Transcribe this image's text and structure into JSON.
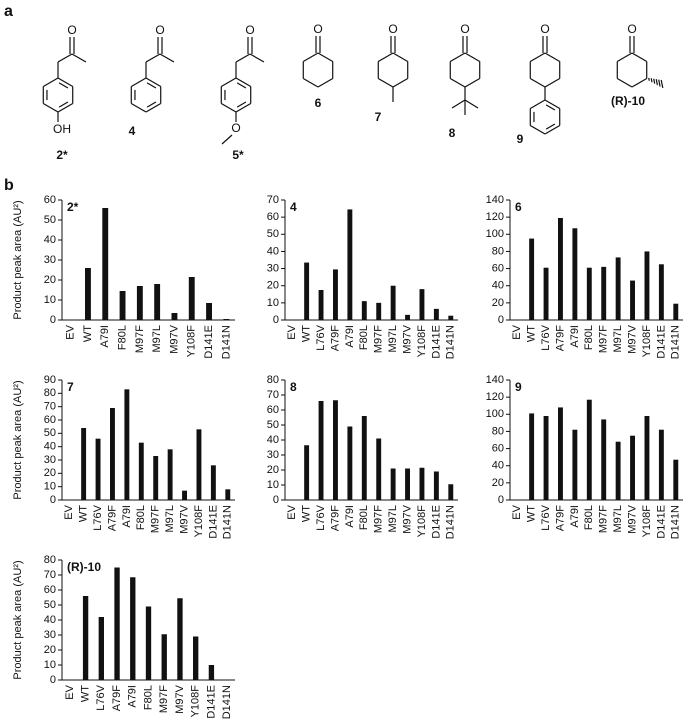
{
  "figure": {
    "panel_a": "a",
    "panel_b": "b",
    "compounds": [
      {
        "label": "2*",
        "atoms": [
          "O",
          "OH"
        ]
      },
      {
        "label": "4",
        "atoms": [
          "O"
        ]
      },
      {
        "label": "5*",
        "atoms": [
          "O",
          "O"
        ]
      },
      {
        "label": "6",
        "atoms": [
          "O"
        ]
      },
      {
        "label": "7",
        "atoms": [
          "O"
        ]
      },
      {
        "label": "8",
        "atoms": [
          "O"
        ]
      },
      {
        "label": "9",
        "atoms": [
          "O"
        ]
      },
      {
        "label": "(R)-10",
        "atoms": [
          "O"
        ]
      }
    ]
  },
  "chart_data": [
    {
      "type": "bar",
      "title": "2*",
      "ylabel": "Product peak area (AU²)",
      "color": "#111111",
      "categories": [
        "EV",
        "WT",
        "A79I",
        "F80L",
        "M97F",
        "M97L",
        "M97V",
        "Y108F",
        "D141E",
        "D141N"
      ],
      "values": [
        0,
        26,
        56,
        14.5,
        17,
        18,
        3.5,
        21.5,
        8.5,
        0.5
      ],
      "ylim": [
        0,
        60
      ],
      "yticks": [
        0,
        10,
        20,
        30,
        40,
        50,
        60
      ]
    },
    {
      "type": "bar",
      "title": "4",
      "color": "#111111",
      "categories": [
        "EV",
        "WT",
        "L76V",
        "A79F",
        "A79I",
        "F80L",
        "M97F",
        "M97L",
        "M97V",
        "Y108F",
        "D141E",
        "D141N"
      ],
      "values": [
        0,
        33.5,
        17.5,
        29.5,
        64.5,
        11,
        10,
        20,
        3,
        18,
        6.5,
        2.5
      ],
      "ylim": [
        0,
        70
      ],
      "yticks": [
        0,
        10,
        20,
        30,
        40,
        50,
        60,
        70
      ]
    },
    {
      "type": "bar",
      "title": "6",
      "color": "#111111",
      "categories": [
        "EV",
        "WT",
        "L76V",
        "A79F",
        "A79I",
        "F80L",
        "M97F",
        "M97L",
        "M97V",
        "Y108F",
        "D141E",
        "D141N"
      ],
      "values": [
        0,
        95,
        61,
        119,
        107,
        61,
        62,
        73,
        46,
        80,
        65,
        19
      ],
      "ylim": [
        0,
        140
      ],
      "yticks": [
        0,
        20,
        40,
        60,
        80,
        100,
        120,
        140
      ]
    },
    {
      "type": "bar",
      "title": "7",
      "ylabel": "Product peak area (AU²)",
      "color": "#111111",
      "categories": [
        "EV",
        "WT",
        "L76V",
        "A79F",
        "A79I",
        "F80L",
        "M97F",
        "M97L",
        "M97V",
        "Y108F",
        "D141E",
        "D141N"
      ],
      "values": [
        0,
        54,
        46,
        69,
        83,
        43,
        33,
        38,
        7,
        53,
        26,
        8
      ],
      "ylim": [
        0,
        90
      ],
      "yticks": [
        0,
        10,
        20,
        30,
        40,
        50,
        60,
        70,
        80,
        90
      ]
    },
    {
      "type": "bar",
      "title": "8",
      "color": "#111111",
      "categories": [
        "EV",
        "WT",
        "L76V",
        "A79F",
        "A79I",
        "F80L",
        "M97F",
        "M97L",
        "M97V",
        "Y108F",
        "D141E",
        "D141N"
      ],
      "values": [
        0,
        36.5,
        66,
        66.5,
        49,
        56,
        41,
        21,
        21,
        21.5,
        19,
        10.5
      ],
      "ylim": [
        0,
        80
      ],
      "yticks": [
        0,
        10,
        20,
        30,
        40,
        50,
        60,
        70,
        80
      ]
    },
    {
      "type": "bar",
      "title": "9",
      "color": "#111111",
      "categories": [
        "EV",
        "WT",
        "L76V",
        "A79F",
        "A79I",
        "F80L",
        "M97F",
        "M97L",
        "M97V",
        "Y108F",
        "D141E",
        "D141N"
      ],
      "values": [
        0,
        101,
        98,
        108,
        82,
        117,
        94,
        68,
        75,
        98,
        82,
        47
      ],
      "ylim": [
        0,
        140
      ],
      "yticks": [
        0,
        20,
        40,
        60,
        80,
        100,
        120,
        140
      ]
    },
    {
      "type": "bar",
      "title": "(R)-10",
      "ylabel": "Product peak area (AU²)",
      "color": "#111111",
      "categories": [
        "EV",
        "WT",
        "L76V",
        "A79F",
        "A79I",
        "F80L",
        "M97F",
        "M97V",
        "Y108F",
        "D141E",
        "D141N"
      ],
      "values": [
        0,
        56,
        42,
        75,
        68.5,
        49,
        30.5,
        54.5,
        29,
        10,
        0
      ],
      "ylim": [
        0,
        80
      ],
      "yticks": [
        0,
        10,
        20,
        30,
        40,
        50,
        60,
        70,
        80
      ]
    }
  ]
}
